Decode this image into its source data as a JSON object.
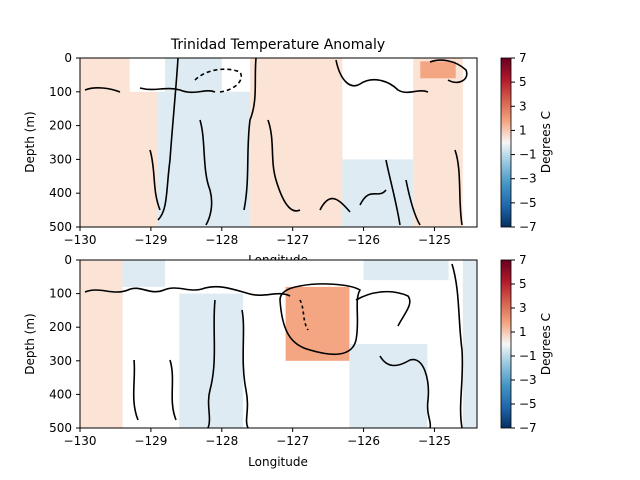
{
  "chart_data": [
    {
      "type": "heatmap",
      "title": "Trinidad Temperature Anomaly",
      "xlabel": "Longitude",
      "ylabel": "Depth (m)",
      "xlim": [
        -130,
        -124.4
      ],
      "ylim": [
        500,
        0
      ],
      "y_inverted": true,
      "xticks": [
        -130,
        -129,
        -128,
        -127,
        -126,
        -125
      ],
      "xtick_labels": [
        "−130",
        "−129",
        "−128",
        "−127",
        "−126",
        "−125"
      ],
      "yticks": [
        0,
        100,
        200,
        300,
        400,
        500
      ],
      "ytick_labels": [
        "0",
        "100",
        "200",
        "300",
        "400",
        "500"
      ],
      "colorbar": {
        "label": "Degrees C",
        "ticks": [
          7,
          5,
          3,
          1,
          -1,
          -3,
          -5,
          -7
        ],
        "tick_labels": [
          "7",
          "5",
          "3",
          "1",
          "−1",
          "−3",
          "−5",
          "−7"
        ]
      },
      "regions": [
        {
          "x": [
            -130,
            -129.3
          ],
          "depth": [
            0,
            500
          ],
          "anomaly": 0.5
        },
        {
          "x": [
            -129.3,
            -128.9
          ],
          "depth": [
            100,
            500
          ],
          "anomaly": 0.4
        },
        {
          "x": [
            -128.8,
            -128.0
          ],
          "depth": [
            0,
            100
          ],
          "anomaly": -0.5
        },
        {
          "x": [
            -128.9,
            -127.6
          ],
          "depth": [
            100,
            500
          ],
          "anomaly": -0.5
        },
        {
          "x": [
            -127.6,
            -126.3
          ],
          "depth": [
            0,
            500
          ],
          "anomaly": 0.5
        },
        {
          "x": [
            -126.3,
            -125.3
          ],
          "depth": [
            300,
            500
          ],
          "anomaly": -0.5
        },
        {
          "x": [
            -125.3,
            -124.6
          ],
          "depth": [
            0,
            500
          ],
          "anomaly": 0.5
        },
        {
          "x": [
            -125.2,
            -124.7
          ],
          "depth": [
            10,
            60
          ],
          "anomaly": 1.2
        }
      ]
    },
    {
      "type": "heatmap",
      "title": "",
      "xlabel": "Longitude",
      "ylabel": "Depth (m)",
      "xlim": [
        -130,
        -124.4
      ],
      "ylim": [
        500,
        0
      ],
      "y_inverted": true,
      "xticks": [
        -130,
        -129,
        -128,
        -127,
        -126,
        -125
      ],
      "xtick_labels": [
        "−130",
        "−129",
        "−128",
        "−127",
        "−126",
        "−125"
      ],
      "yticks": [
        0,
        100,
        200,
        300,
        400,
        500
      ],
      "ytick_labels": [
        "0",
        "100",
        "200",
        "300",
        "400",
        "500"
      ],
      "colorbar": {
        "label": "Degrees C",
        "ticks": [
          7,
          5,
          3,
          1,
          -1,
          -3,
          -5,
          -7
        ],
        "tick_labels": [
          "7",
          "5",
          "3",
          "1",
          "−1",
          "−3",
          "−5",
          "−7"
        ]
      },
      "regions": [
        {
          "x": [
            -130,
            -129.4
          ],
          "depth": [
            0,
            500
          ],
          "anomaly": 0.5
        },
        {
          "x": [
            -129.4,
            -128.8
          ],
          "depth": [
            0,
            80
          ],
          "anomaly": -0.5
        },
        {
          "x": [
            -128.6,
            -127.7
          ],
          "depth": [
            100,
            500
          ],
          "anomaly": -0.5
        },
        {
          "x": [
            -127.1,
            -126.2
          ],
          "depth": [
            80,
            300
          ],
          "anomaly": 1.5
        },
        {
          "x": [
            -126.2,
            -125.1
          ],
          "depth": [
            250,
            500
          ],
          "anomaly": -0.5
        },
        {
          "x": [
            -126.0,
            -124.8
          ],
          "depth": [
            0,
            60
          ],
          "anomaly": -0.5
        },
        {
          "x": [
            -124.6,
            -124.4
          ],
          "depth": [
            0,
            500
          ],
          "anomaly": -0.5
        }
      ]
    }
  ]
}
